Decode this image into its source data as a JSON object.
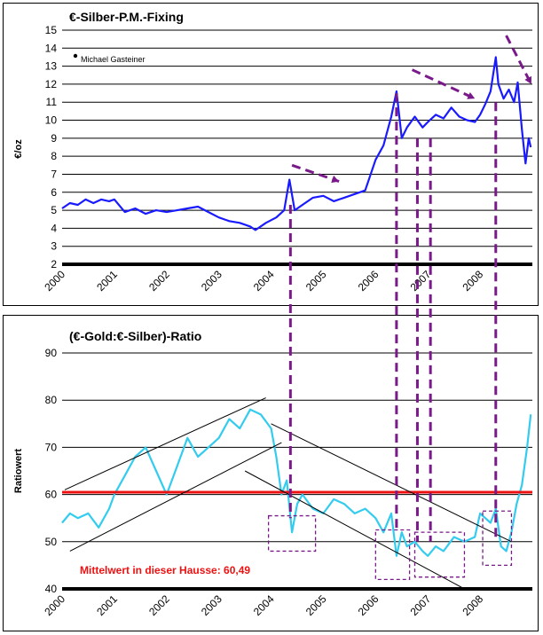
{
  "chart_data": [
    {
      "type": "line",
      "title": "€-Silber-P.M.-Fixing",
      "ylabel": "€/oz",
      "xlabel": "",
      "credit": "Michael Gasteiner",
      "ylim": [
        2,
        15
      ],
      "y_ticks": [
        "2",
        "3",
        "4",
        "5",
        "6",
        "7",
        "8",
        "9",
        "10",
        "11",
        "12",
        "13",
        "14",
        "15"
      ],
      "x_ticks": [
        "2000",
        "2001",
        "2002",
        "2003",
        "2004",
        "2005",
        "2006",
        "2007",
        "2008"
      ],
      "grid": true,
      "series": [
        {
          "color": "#1a1aff",
          "x": [
            2000.0,
            2000.15,
            2000.3,
            2000.45,
            2000.6,
            2000.75,
            2000.9,
            2001.0,
            2001.2,
            2001.4,
            2001.6,
            2001.8,
            2002.0,
            2002.2,
            2002.4,
            2002.6,
            2002.8,
            2003.0,
            2003.2,
            2003.4,
            2003.6,
            2003.7,
            2003.9,
            2004.1,
            2004.25,
            2004.35,
            2004.45,
            2004.6,
            2004.8,
            2005.0,
            2005.2,
            2005.4,
            2005.6,
            2005.8,
            2006.0,
            2006.15,
            2006.3,
            2006.4,
            2006.5,
            2006.6,
            2006.75,
            2006.9,
            2007.0,
            2007.15,
            2007.3,
            2007.45,
            2007.6,
            2007.75,
            2007.9,
            2008.0,
            2008.1,
            2008.2,
            2008.3,
            2008.35,
            2008.45,
            2008.55,
            2008.65,
            2008.72,
            2008.8,
            2008.87,
            2008.93,
            2008.97
          ],
          "values": [
            5.1,
            5.4,
            5.3,
            5.6,
            5.4,
            5.6,
            5.5,
            5.6,
            4.9,
            5.1,
            4.8,
            5.0,
            4.9,
            5.0,
            5.1,
            5.2,
            4.9,
            4.6,
            4.4,
            4.3,
            4.1,
            3.9,
            4.3,
            4.6,
            5.0,
            6.7,
            5.0,
            5.3,
            5.7,
            5.8,
            5.5,
            5.7,
            5.9,
            6.1,
            7.8,
            8.6,
            10.2,
            11.6,
            9.0,
            9.6,
            10.2,
            9.6,
            9.9,
            10.3,
            10.1,
            10.7,
            10.2,
            10.0,
            9.9,
            10.3,
            10.9,
            11.6,
            13.5,
            12.0,
            11.2,
            11.7,
            11.0,
            12.1,
            9.5,
            7.6,
            9.0,
            8.5
          ]
        }
      ]
    },
    {
      "type": "line",
      "title": "(€-Gold:€-Silber)-Ratio",
      "ylabel": "Ratiowert",
      "xlabel": "",
      "ylim": [
        40,
        90
      ],
      "y_ticks": [
        "40",
        "50",
        "60",
        "70",
        "80",
        "90"
      ],
      "x_ticks": [
        "2000",
        "2001",
        "2002",
        "2003",
        "2004",
        "2005",
        "2006",
        "2007",
        "2008"
      ],
      "grid": true,
      "mean_value": 60.49,
      "mean_label": "Mittelwert in dieser Hausse: 60,49",
      "series": [
        {
          "color": "#33ccee",
          "x": [
            2000.0,
            2000.15,
            2000.3,
            2000.5,
            2000.7,
            2000.9,
            2001.0,
            2001.2,
            2001.4,
            2001.6,
            2001.8,
            2002.0,
            2002.2,
            2002.4,
            2002.6,
            2002.8,
            2003.0,
            2003.2,
            2003.4,
            2003.6,
            2003.8,
            2004.0,
            2004.1,
            2004.2,
            2004.3,
            2004.4,
            2004.5,
            2004.6,
            2004.8,
            2005.0,
            2005.2,
            2005.4,
            2005.6,
            2005.8,
            2006.0,
            2006.15,
            2006.3,
            2006.4,
            2006.5,
            2006.6,
            2006.75,
            2006.9,
            2007.0,
            2007.15,
            2007.3,
            2007.5,
            2007.7,
            2007.9,
            2008.0,
            2008.1,
            2008.2,
            2008.3,
            2008.4,
            2008.5,
            2008.6,
            2008.7,
            2008.8,
            2008.9,
            2008.97
          ],
          "values": [
            54,
            56,
            55,
            56,
            53,
            57,
            60,
            64,
            68,
            70,
            65,
            60,
            66,
            72,
            68,
            70,
            72,
            76,
            74,
            78,
            77,
            74,
            68,
            60,
            63,
            52,
            58,
            60,
            57,
            56,
            59,
            58,
            56,
            57,
            55,
            52,
            56,
            47,
            52,
            49,
            50,
            48,
            47,
            49,
            48,
            51,
            50,
            51,
            56,
            55,
            54,
            57,
            49,
            48,
            52,
            58,
            62,
            70,
            77
          ]
        }
      ],
      "annotations": []
    }
  ],
  "top_label_credit": "Michael Gasteiner"
}
